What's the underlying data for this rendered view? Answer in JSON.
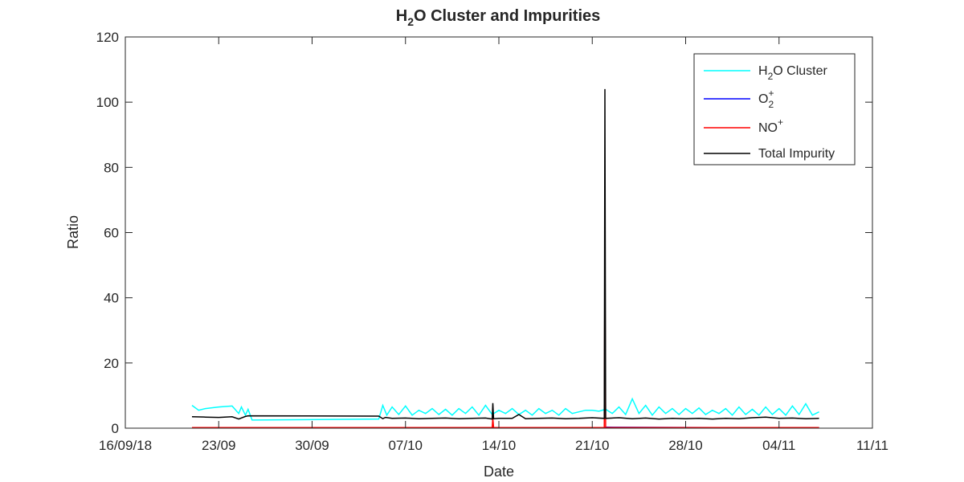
{
  "chart_data": {
    "type": "line",
    "title": {
      "main": "H",
      "sub": "2",
      "rest": "O Cluster and Impurities"
    },
    "xlabel": "Date",
    "ylabel": "Ratio",
    "xlim": [
      "2018-09-16",
      "2018-11-11"
    ],
    "ylim": [
      0,
      120
    ],
    "xticks": [
      {
        "date": "2018-09-16",
        "label": "16/09/18"
      },
      {
        "date": "2018-09-23",
        "label": "23/09"
      },
      {
        "date": "2018-09-30",
        "label": "30/09"
      },
      {
        "date": "2018-10-07",
        "label": "07/10"
      },
      {
        "date": "2018-10-14",
        "label": "14/10"
      },
      {
        "date": "2018-10-21",
        "label": "21/10"
      },
      {
        "date": "2018-10-28",
        "label": "28/10"
      },
      {
        "date": "2018-11-04",
        "label": "04/11"
      },
      {
        "date": "2018-11-11",
        "label": "11/11"
      }
    ],
    "yticks": [
      0,
      20,
      40,
      60,
      80,
      100,
      120
    ],
    "grid": false,
    "legend_position": "top-right",
    "series": [
      {
        "name": "H2O Cluster",
        "legend": {
          "pre": "H",
          "sub": "2",
          "sup": "",
          "post": "O Cluster"
        },
        "color": "#00FFFF",
        "x": [
          "2018-09-21",
          "2018-09-21.5",
          "2018-09-22",
          "2018-09-23",
          "2018-09-24",
          "2018-09-24.5",
          "2018-09-24.7",
          "2018-09-25",
          "2018-09-25.2",
          "2018-09-25.5",
          "2018-10-05",
          "2018-10-05.3",
          "2018-10-05.6",
          "2018-10-06",
          "2018-10-06.5",
          "2018-10-07",
          "2018-10-07.5",
          "2018-10-08",
          "2018-10-08.5",
          "2018-10-09",
          "2018-10-09.5",
          "2018-10-10",
          "2018-10-10.5",
          "2018-10-11",
          "2018-10-11.5",
          "2018-10-12",
          "2018-10-12.5",
          "2018-10-13",
          "2018-10-13.5",
          "2018-10-14",
          "2018-10-14.5",
          "2018-10-15",
          "2018-10-15.5",
          "2018-10-16",
          "2018-10-16.5",
          "2018-10-17",
          "2018-10-17.5",
          "2018-10-18",
          "2018-10-18.5",
          "2018-10-19",
          "2018-10-19.5",
          "2018-10-20",
          "2018-10-20.5",
          "2018-10-21",
          "2018-10-21.5",
          "2018-10-22",
          "2018-10-22.5",
          "2018-10-23",
          "2018-10-23.5",
          "2018-10-24",
          "2018-10-24.5",
          "2018-10-25",
          "2018-10-25.5",
          "2018-10-26",
          "2018-10-26.5",
          "2018-10-27",
          "2018-10-27.5",
          "2018-10-28",
          "2018-10-28.5",
          "2018-10-29",
          "2018-10-29.5",
          "2018-10-30",
          "2018-10-30.5",
          "2018-10-31",
          "2018-10-31.5",
          "2018-11-01",
          "2018-11-01.5",
          "2018-11-02",
          "2018-11-02.5",
          "2018-11-03",
          "2018-11-03.5",
          "2018-11-04",
          "2018-11-04.5",
          "2018-11-05",
          "2018-11-05.5",
          "2018-11-06",
          "2018-11-06.5",
          "2018-11-07"
        ],
        "y": [
          7.0,
          5.5,
          6.0,
          6.5,
          6.8,
          4.5,
          6.5,
          4.0,
          5.8,
          2.5,
          2.8,
          7.0,
          4.0,
          6.5,
          4.2,
          6.8,
          4.0,
          5.5,
          4.5,
          6.0,
          4.2,
          5.8,
          4.0,
          6.0,
          4.5,
          6.5,
          4.0,
          7.0,
          4.2,
          5.5,
          4.5,
          6.0,
          4.2,
          5.5,
          4.0,
          6.0,
          4.5,
          5.5,
          4.0,
          6.0,
          4.5,
          5.0,
          5.5,
          5.5,
          5.2,
          5.8,
          4.5,
          6.5,
          4.2,
          9.0,
          4.5,
          7.0,
          4.0,
          6.5,
          4.5,
          6.0,
          4.2,
          6.0,
          4.5,
          6.2,
          4.2,
          5.5,
          4.5,
          6.0,
          4.0,
          6.5,
          4.2,
          5.8,
          4.0,
          6.5,
          4.2,
          6.0,
          4.0,
          6.8,
          4.2,
          7.5,
          4.0,
          5.0
        ]
      },
      {
        "name": "O2+",
        "legend": {
          "pre": "O",
          "sub": "2",
          "sup": "+",
          "post": ""
        },
        "color": "#0000FF",
        "x": [
          "2018-09-21",
          "2018-10-21.9",
          "2018-10-22",
          "2018-11-07"
        ],
        "y": [
          0.1,
          0.1,
          0.3,
          0.1
        ]
      },
      {
        "name": "NO+",
        "legend": {
          "pre": "NO",
          "sub": "",
          "sup": "+",
          "post": ""
        },
        "color": "#FF0000",
        "x": [
          "2018-09-21",
          "2018-10-13.5",
          "2018-10-13.55",
          "2018-10-13.6",
          "2018-10-21.9",
          "2018-10-21.95",
          "2018-10-22",
          "2018-11-07"
        ],
        "y": [
          0.2,
          0.2,
          3.0,
          0.2,
          0.2,
          50.0,
          0.2,
          0.2
        ]
      },
      {
        "name": "Total Impurity",
        "legend": {
          "pre": "Total Impurity",
          "sub": "",
          "sup": "",
          "post": ""
        },
        "color": "#000000",
        "x": [
          "2018-09-21",
          "2018-09-22",
          "2018-09-23",
          "2018-09-24",
          "2018-09-24.5",
          "2018-09-25",
          "2018-09-25.2",
          "2018-10-05",
          "2018-10-05.3",
          "2018-10-05.5",
          "2018-10-06",
          "2018-10-07",
          "2018-10-08",
          "2018-10-09",
          "2018-10-10",
          "2018-10-11",
          "2018-10-12",
          "2018-10-13",
          "2018-10-13.5",
          "2018-10-13.55",
          "2018-10-13.6",
          "2018-10-14",
          "2018-10-15",
          "2018-10-15.5",
          "2018-10-16",
          "2018-10-17",
          "2018-10-18",
          "2018-10-19",
          "2018-10-20",
          "2018-10-21",
          "2018-10-21.9",
          "2018-10-21.95",
          "2018-10-22",
          "2018-10-23",
          "2018-10-24",
          "2018-10-25",
          "2018-10-26",
          "2018-10-27",
          "2018-10-28",
          "2018-10-29",
          "2018-10-30",
          "2018-10-31",
          "2018-11-01",
          "2018-11-02",
          "2018-11-03",
          "2018-11-04",
          "2018-11-05",
          "2018-11-06",
          "2018-11-07"
        ],
        "y": [
          3.5,
          3.4,
          3.3,
          3.5,
          2.8,
          3.6,
          3.8,
          3.7,
          2.9,
          3.3,
          3.0,
          3.1,
          2.9,
          3.0,
          3.1,
          2.9,
          3.0,
          3.1,
          2.8,
          7.7,
          2.9,
          3.0,
          3.0,
          4.2,
          2.9,
          3.0,
          3.1,
          2.9,
          3.0,
          3.2,
          3.0,
          104.0,
          3.0,
          3.2,
          2.9,
          3.1,
          2.8,
          3.0,
          2.9,
          3.0,
          2.8,
          3.0,
          2.9,
          3.2,
          3.4,
          3.0,
          3.1,
          2.9,
          3.0
        ]
      }
    ]
  }
}
